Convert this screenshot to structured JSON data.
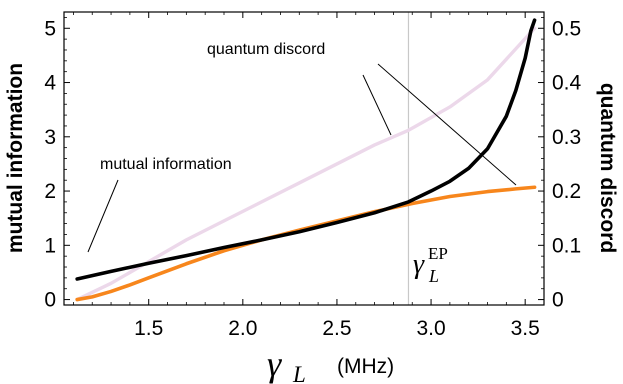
{
  "chart_data": {
    "type": "line",
    "xlabel": {
      "symbol": "γ",
      "subscript": "L",
      "unit": "(MHz)"
    },
    "ylabel_left": "mutual information",
    "ylabel_right": "quantum discord",
    "xlim": [
      1.05,
      3.6
    ],
    "ylim_left": [
      -0.1,
      5.3
    ],
    "ylim_right": [
      -0.01,
      0.53
    ],
    "x_ticks": [
      "1.5",
      "2.0",
      "2.5",
      "3.0",
      "3.5"
    ],
    "x_tick_values": [
      1.5,
      2.0,
      2.5,
      3.0,
      3.5
    ],
    "y_ticks_left": [
      "0",
      "1",
      "2",
      "3",
      "4",
      "5"
    ],
    "y_tick_values_left": [
      0,
      1,
      2,
      3,
      4,
      5
    ],
    "y_ticks_right": [
      "0",
      "0.1",
      "0.2",
      "0.3",
      "0.4",
      "0.5"
    ],
    "y_tick_values_right": [
      0,
      0.1,
      0.2,
      0.3,
      0.4,
      0.5
    ],
    "exceptional_point": {
      "x": 2.88,
      "label_base": "γ",
      "label_sub": "L",
      "label_sup": "EP"
    },
    "series": [
      {
        "axis": "left",
        "color": "#000000",
        "x": [
          1.12,
          1.3,
          1.5,
          1.7,
          1.9,
          2.1,
          2.3,
          2.5,
          2.7,
          2.88,
          3.0,
          3.1,
          3.2,
          3.3,
          3.4,
          3.45,
          3.5,
          3.53,
          3.55
        ],
        "y": [
          0.38,
          0.52,
          0.67,
          0.81,
          0.96,
          1.1,
          1.25,
          1.42,
          1.6,
          1.8,
          2.0,
          2.18,
          2.42,
          2.78,
          3.38,
          3.85,
          4.45,
          4.95,
          5.15
        ]
      },
      {
        "axis": "right",
        "color": "#f7861c",
        "x": [
          1.12,
          1.2,
          1.3,
          1.4,
          1.5,
          1.7,
          1.9,
          2.1,
          2.3,
          2.5,
          2.7,
          2.9,
          3.1,
          3.3,
          3.45,
          3.55
        ],
        "y": [
          0.0,
          0.005,
          0.015,
          0.027,
          0.04,
          0.066,
          0.09,
          0.11,
          0.128,
          0.145,
          0.162,
          0.177,
          0.19,
          0.199,
          0.204,
          0.207
        ]
      },
      {
        "axis": "right",
        "color": "#ecd8ea",
        "x": [
          1.12,
          1.3,
          1.5,
          1.7,
          1.9,
          2.1,
          2.3,
          2.5,
          2.7,
          2.88,
          3.1,
          3.3,
          3.55
        ],
        "y": [
          0.0,
          0.03,
          0.07,
          0.11,
          0.145,
          0.18,
          0.215,
          0.25,
          0.285,
          0.312,
          0.355,
          0.405,
          0.5
        ]
      }
    ],
    "annotations": [
      {
        "text": "quantum discord"
      },
      {
        "text": "mutual information"
      }
    ]
  }
}
